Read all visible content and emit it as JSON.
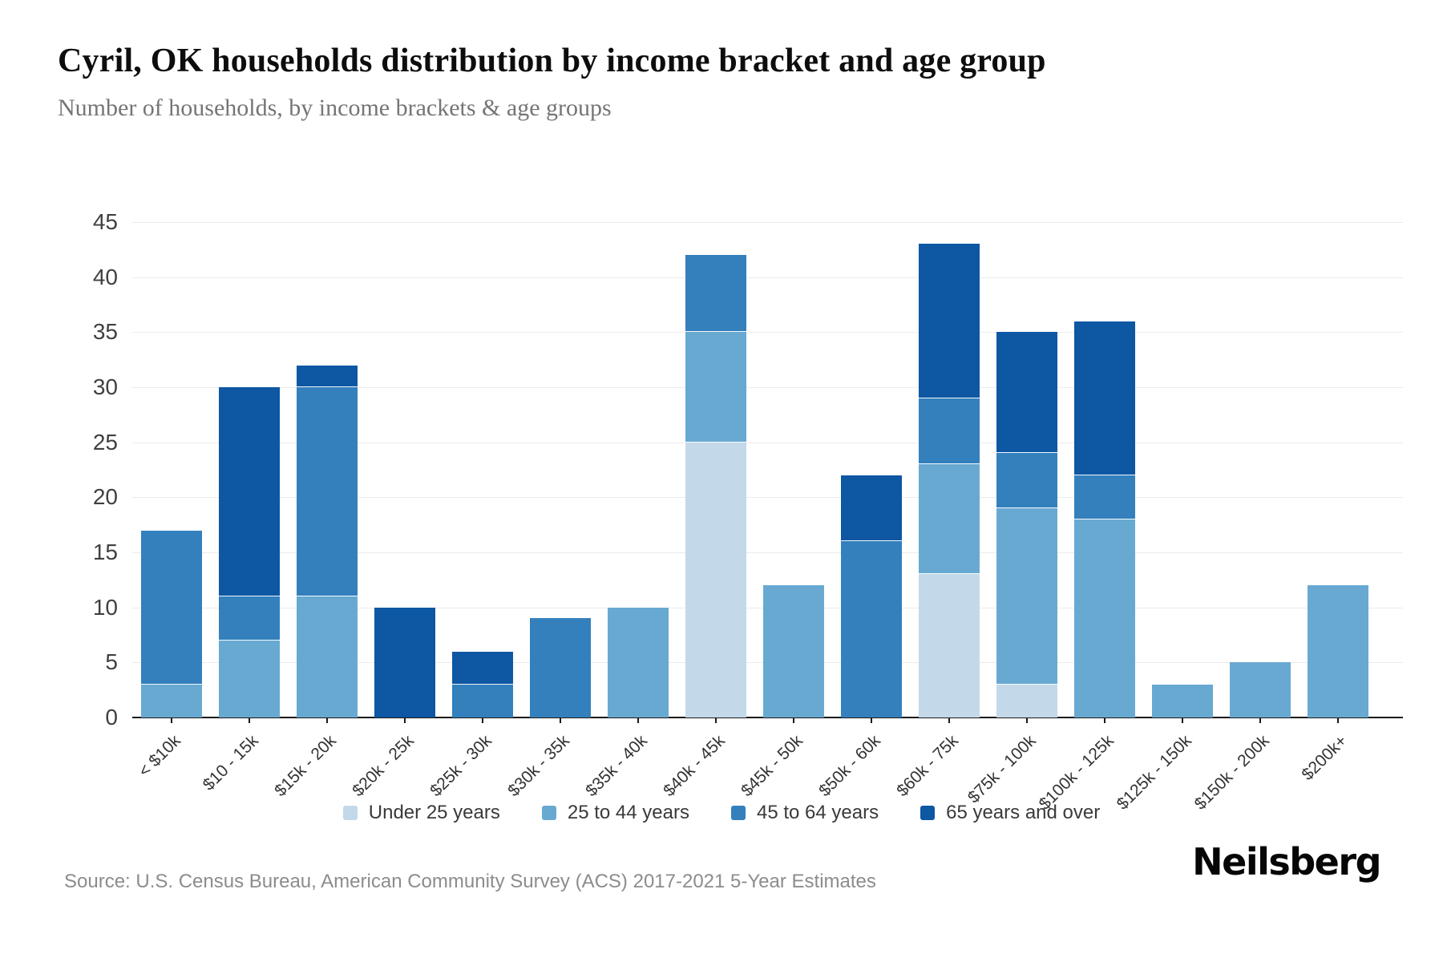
{
  "header": {
    "title": "Cyril, OK households distribution by income bracket and age group",
    "subtitle": "Number of households, by income brackets & age groups"
  },
  "chart_data": {
    "type": "bar",
    "stacked": true,
    "title": "Cyril, OK households distribution by income bracket and age group",
    "xlabel": "",
    "ylabel": "Number of households",
    "ylim": [
      0,
      45
    ],
    "ytick_step": 5,
    "grid": true,
    "legend_position": "bottom",
    "categories": [
      "< $10k",
      "$10 - 15k",
      "$15k - 20k",
      "$20k - 25k",
      "$25k - 30k",
      "$30k - 35k",
      "$35k - 40k",
      "$40k - 45k",
      "$45k - 50k",
      "$50k - 60k",
      "$60k - 75k",
      "$75k - 100k",
      "$100k - 125k",
      "$125k - 150k",
      "$150k - 200k",
      "$200k+"
    ],
    "series": [
      {
        "name": "Under 25 years",
        "color": "#c3d9e9",
        "values": [
          0,
          0,
          0,
          0,
          0,
          0,
          0,
          25,
          0,
          0,
          13,
          3,
          0,
          0,
          0,
          0
        ]
      },
      {
        "name": "25 to 44 years",
        "color": "#68a9d2",
        "values": [
          3,
          7,
          11,
          0,
          0,
          0,
          10,
          10,
          12,
          0,
          10,
          16,
          18,
          3,
          5,
          12
        ]
      },
      {
        "name": "45 to 64 years",
        "color": "#3380bd",
        "values": [
          14,
          4,
          19,
          0,
          3,
          9,
          0,
          7,
          0,
          16,
          6,
          5,
          4,
          0,
          0,
          0
        ]
      },
      {
        "name": "65 years and over",
        "color": "#0d57a3",
        "values": [
          0,
          19,
          2,
          10,
          3,
          0,
          0,
          0,
          0,
          6,
          14,
          11,
          14,
          0,
          0,
          0
        ]
      }
    ],
    "totals": [
      17,
      30,
      32,
      10,
      6,
      9,
      10,
      42,
      12,
      22,
      43,
      35,
      36,
      3,
      5,
      12
    ]
  },
  "footer": {
    "source": "Source: U.S. Census Bureau, American Community Survey (ACS) 2017-2021 5-Year Estimates",
    "brand": "Neilsberg"
  }
}
